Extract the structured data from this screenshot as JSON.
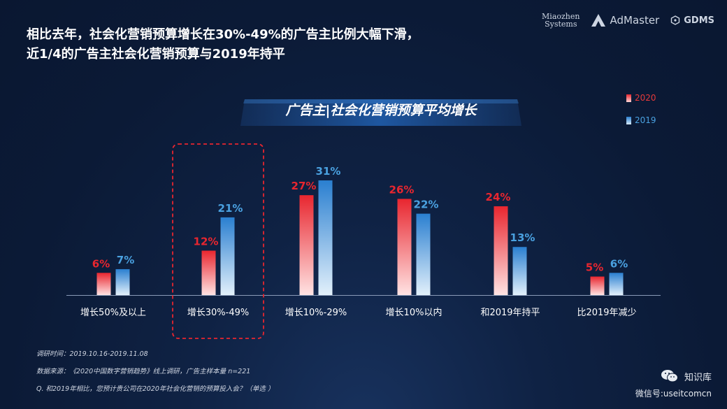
{
  "title": {
    "line1": "相比去年，社会化营销预算增长在30%-49%的广告主比例大幅下滑，",
    "line2": "近1/4的广告主社会化营销预算与2019年持平"
  },
  "logos": {
    "miaozhen_line1": "Miaozhen",
    "miaozhen_line2": "Systems",
    "admaster": "AdMaster",
    "gdms": "GDMS"
  },
  "colors": {
    "series_2020": "#e8262f",
    "series_2019": "#2a7fd0",
    "highlight_border": "#e8262f",
    "label_2019": "#4aa1e0"
  },
  "chart_data": {
    "type": "bar",
    "title": "广告主|社会化营销预算平均增长",
    "categories": [
      "增长50%及以上",
      "增长30%-49%",
      "增长10%-29%",
      "增长10%以内",
      "和2019年持平",
      "比2019年减少"
    ],
    "series": [
      {
        "name": "2020",
        "values": [
          6,
          12,
          27,
          26,
          24,
          5
        ],
        "labels": [
          "6%",
          "12%",
          "27%",
          "26%",
          "24%",
          "5%"
        ]
      },
      {
        "name": "2019",
        "values": [
          7,
          21,
          31,
          22,
          13,
          6
        ],
        "labels": [
          "7%",
          "21%",
          "31%",
          "22%",
          "13%",
          "6%"
        ]
      }
    ],
    "highlight_category_index": 1,
    "ylim": [
      0,
      31
    ],
    "legend_position": "top-right",
    "grid": false
  },
  "notes": {
    "survey_time": "调研时间：2019.10.16-2019.11.08",
    "source": "数据来源：《2020中国数字营销趋势》线上调研，广告主样本量 n=221",
    "question": "Q. 和2019年相比，您预计贵公司在2020年社会化营销的预算投入会？（单选 ）"
  },
  "footer": {
    "brand": "知识库",
    "wechat": "微信号:useitcomcn"
  }
}
